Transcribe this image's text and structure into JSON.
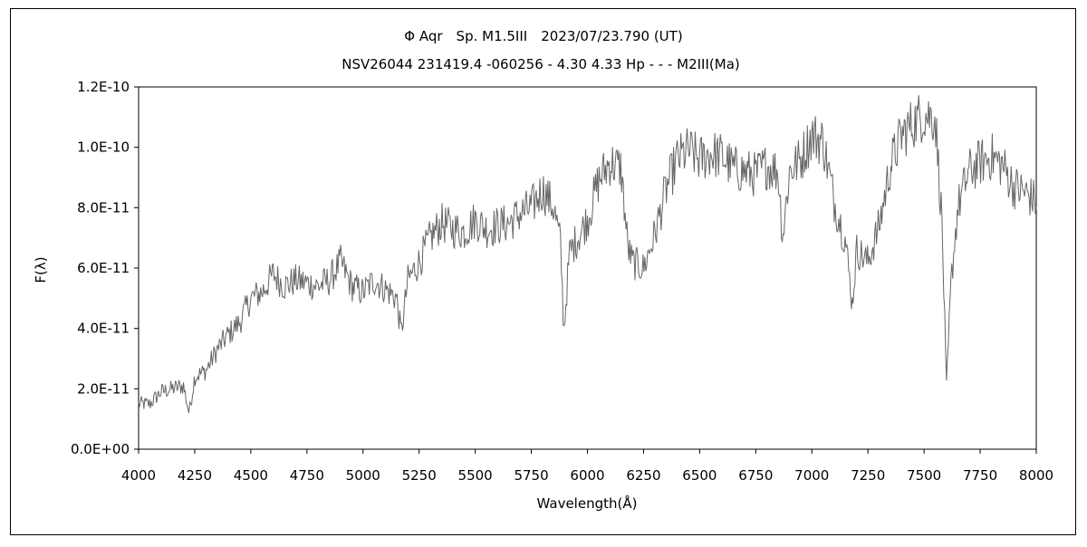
{
  "chart_data": {
    "type": "line",
    "title": "Φ Aqr　Sp. M1.5III　2023/07/23.790 (UT)",
    "subtitle": "NSV26044 231419.4 -060256 - 4.30 4.33 Hp - - - M2III(Ma)",
    "xlabel": "Wavelength(Å)",
    "ylabel": "F(λ)",
    "xlim": [
      4000,
      8000
    ],
    "ylim": [
      0,
      1.2e-10
    ],
    "x_ticks": [
      "4000",
      "4250",
      "4500",
      "4750",
      "5000",
      "5250",
      "5500",
      "5750",
      "6000",
      "6250",
      "6500",
      "6750",
      "7000",
      "7250",
      "7500",
      "7750",
      "8000"
    ],
    "y_ticks": [
      "0.0E+00",
      "2.0E-11",
      "4.0E-11",
      "6.0E-11",
      "8.0E-11",
      "1.0E-10",
      "1.2E-10"
    ],
    "grid": false,
    "legend": "none",
    "line_color": "#666666",
    "series": [
      {
        "x": [
          4000,
          4050,
          4100,
          4150,
          4200,
          4225,
          4250,
          4300,
          4350,
          4400,
          4450,
          4500,
          4550,
          4600,
          4650,
          4700,
          4750,
          4800,
          4850,
          4900,
          4950,
          5000,
          5050,
          5100,
          5150,
          5170,
          5200,
          5250,
          5300,
          5350,
          5400,
          5450,
          5500,
          5550,
          5600,
          5650,
          5700,
          5750,
          5800,
          5850,
          5880,
          5895,
          5920,
          6000,
          6050,
          6100,
          6150,
          6180,
          6200,
          6250,
          6300,
          6350,
          6400,
          6450,
          6500,
          6550,
          6600,
          6650,
          6700,
          6750,
          6800,
          6850,
          6870,
          6900,
          6950,
          7000,
          7050,
          7100,
          7150,
          7180,
          7200,
          7250,
          7300,
          7350,
          7400,
          7450,
          7500,
          7550,
          7580,
          7600,
          7620,
          7650,
          7700,
          7750,
          7800,
          7850,
          7900,
          7950,
          8000
        ],
        "values": [
          1.5e-11,
          1.5e-11,
          1.9e-11,
          2e-11,
          2.1e-11,
          1.2e-11,
          2.4e-11,
          2.6e-11,
          3.3e-11,
          3.8e-11,
          4.2e-11,
          5e-11,
          5.2e-11,
          5.8e-11,
          5.4e-11,
          5.6e-11,
          5.5e-11,
          5.4e-11,
          5.6e-11,
          6.2e-11,
          5.4e-11,
          5.2e-11,
          5.6e-11,
          5.3e-11,
          5e-11,
          3.8e-11,
          5.6e-11,
          6.2e-11,
          7e-11,
          7.5e-11,
          7.3e-11,
          7.2e-11,
          7.6e-11,
          7.3e-11,
          7.4e-11,
          7.5e-11,
          7.8e-11,
          8e-11,
          8.6e-11,
          8e-11,
          6.8e-11,
          3.9e-11,
          6.5e-11,
          7.6e-11,
          8.9e-11,
          9.5e-11,
          9.3e-11,
          6.7e-11,
          6.2e-11,
          6e-11,
          7.1e-11,
          8.6e-11,
          9.6e-11,
          9.9e-11,
          9.6e-11,
          9.8e-11,
          9.7e-11,
          9.3e-11,
          9.2e-11,
          9.1e-11,
          9.4e-11,
          9.2e-11,
          7e-11,
          9.2e-11,
          9.6e-11,
          1.04e-10,
          1.02e-10,
          8.2e-11,
          6.9e-11,
          4.8e-11,
          6.6e-11,
          6.2e-11,
          7.4e-11,
          9.4e-11,
          1.04e-10,
          1.08e-10,
          1.11e-10,
          1.1e-10,
          7.5e-11,
          2e-11,
          5.5e-11,
          8e-11,
          9.2e-11,
          9.5e-11,
          9.7e-11,
          9.4e-11,
          8.7e-11,
          8.5e-11,
          8.2e-11
        ]
      }
    ]
  }
}
